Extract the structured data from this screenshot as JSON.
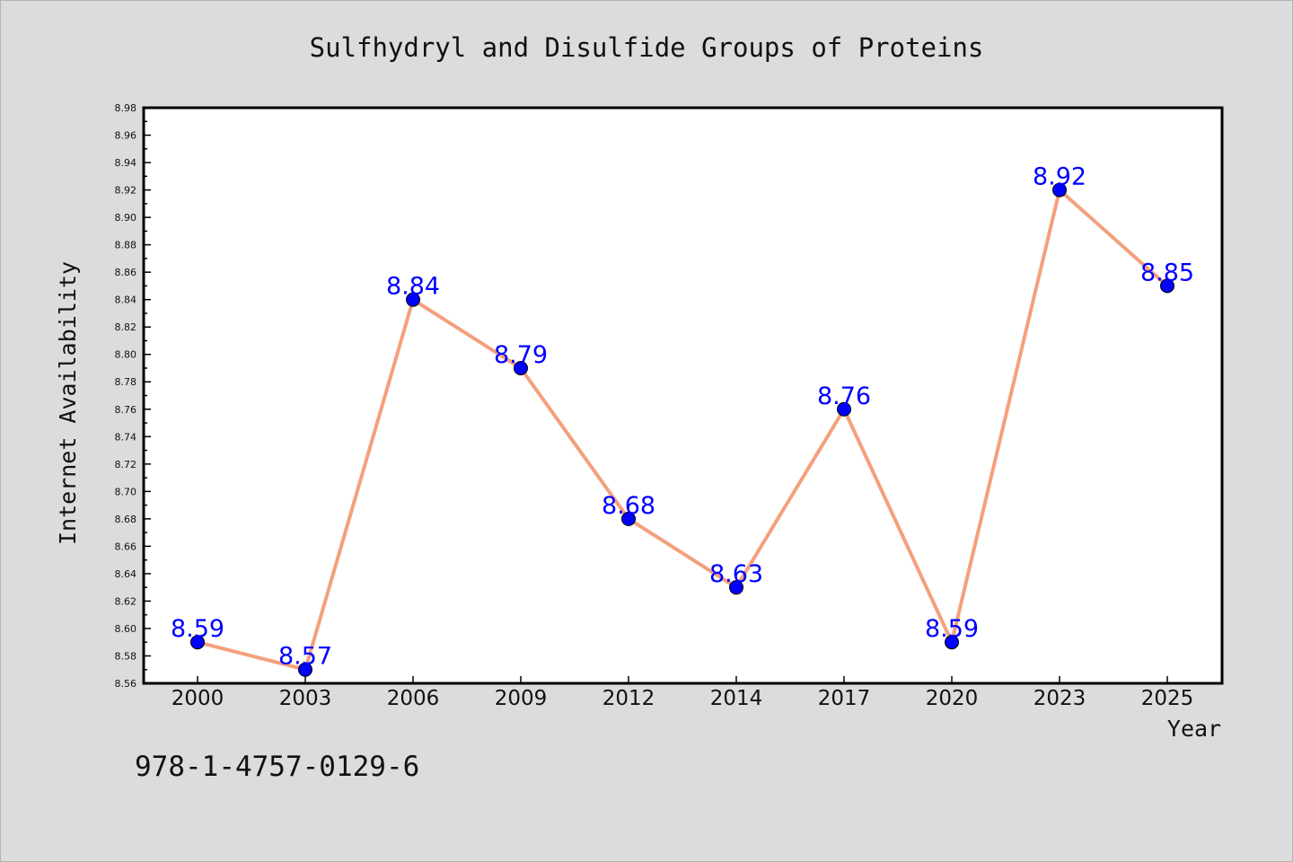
{
  "chart_data": {
    "type": "line",
    "title": "Sulfhydryl and Disulfide Groups of Proteins",
    "xlabel": "Year",
    "ylabel": "Internet Availability",
    "categories": [
      "2000",
      "2003",
      "2006",
      "2009",
      "2012",
      "2014",
      "2017",
      "2020",
      "2023",
      "2025"
    ],
    "series": [
      {
        "values": [
          8.59,
          8.57,
          8.84,
          8.79,
          8.68,
          8.63,
          8.76,
          8.59,
          8.92,
          8.85
        ],
        "line_color": "#f4a07c",
        "marker_color": "#0000ff"
      }
    ],
    "data_labels": [
      "8.59",
      "8.57",
      "8.84",
      "8.79",
      "8.68",
      "8.63",
      "8.76",
      "8.59",
      "8.92",
      "8.85"
    ],
    "ylim": [
      8.56,
      8.98
    ],
    "yticks": [
      "8.56",
      "8.58",
      "8.60",
      "8.62",
      "8.64",
      "8.66",
      "8.68",
      "8.70",
      "8.72",
      "8.74",
      "8.76",
      "8.78",
      "8.80",
      "8.82",
      "8.84",
      "8.86",
      "8.88",
      "8.90",
      "8.92",
      "8.94",
      "8.96",
      "8.98"
    ],
    "grid": false,
    "data_label_color": "#0000ff",
    "background_color": "#dcdcdc",
    "plot_background_color": "#ffffff"
  },
  "footer": {
    "isbn": "978-1-4757-0129-6"
  }
}
